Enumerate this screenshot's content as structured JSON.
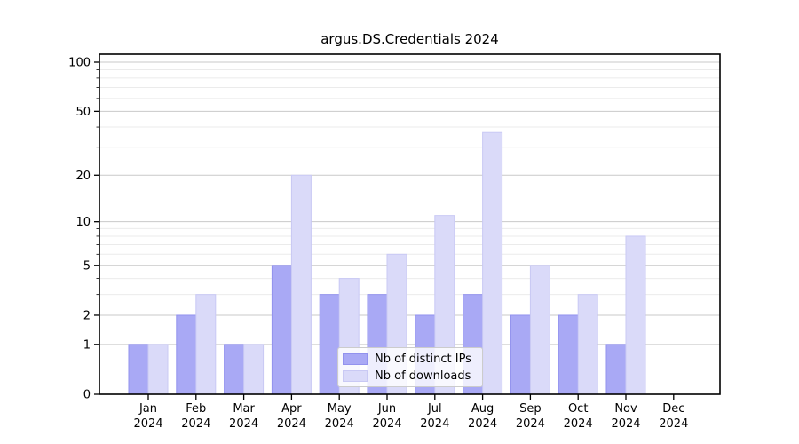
{
  "title": "argus.DS.Credentials 2024",
  "chart_data": {
    "type": "bar",
    "categories": [
      "Jan",
      "Feb",
      "Mar",
      "Apr",
      "May",
      "Jun",
      "Jul",
      "Aug",
      "Sep",
      "Oct",
      "Nov",
      "Dec"
    ],
    "category_year": "2024",
    "series": [
      {
        "name": "Nb of distinct IPs",
        "values": [
          1,
          2,
          1,
          5,
          3,
          3,
          2,
          3,
          2,
          2,
          1,
          0
        ],
        "fill": "#a9a9f5",
        "edge": "#9292ee"
      },
      {
        "name": "Nb of downloads",
        "values": [
          1,
          3,
          1,
          20,
          4,
          6,
          11,
          37,
          5,
          3,
          8,
          0
        ],
        "fill": "#dadaf9",
        "edge": "#c9c9f4"
      }
    ],
    "y_axis": {
      "scale": "log1p",
      "range": [
        0,
        100
      ],
      "major_ticks": [
        0,
        1,
        2,
        5,
        10,
        20,
        50,
        100
      ],
      "minor_ticks": [
        3,
        4,
        6,
        7,
        8,
        9,
        30,
        40,
        60,
        70,
        80,
        90
      ]
    },
    "grid": {
      "major_color": "#c9c9c9",
      "minor_color": "#ebebeb"
    },
    "legend_position": "lower-center-inside",
    "xlabel": "",
    "ylabel": ""
  }
}
